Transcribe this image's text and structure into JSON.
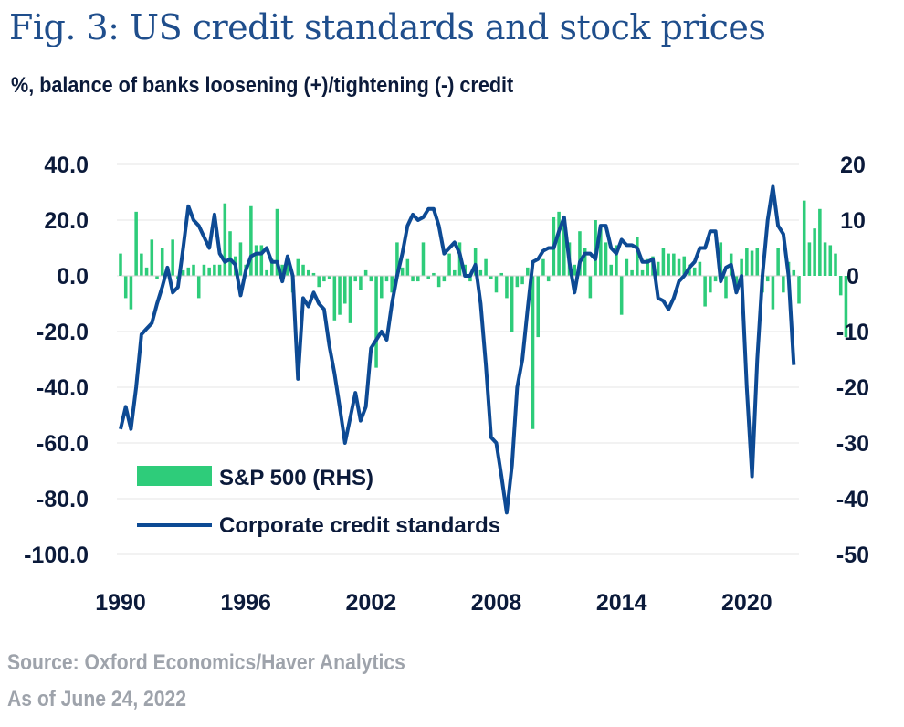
{
  "title": "Fig. 3: US credit standards and stock prices",
  "subtitle": "%, balance of banks loosening (+)/tightening (-) credit",
  "footer": {
    "source": "Source: Oxford Economics/Haver Analytics",
    "as_of": "As of June 24, 2022"
  },
  "colors": {
    "bars": "#2ecc7a",
    "line": "#0d4a94",
    "text": "#0b1a3a",
    "title": "#1f4e8c",
    "grid": "#e6e6e6",
    "footer": "#9ea3ab"
  },
  "chart_data": {
    "type": "bar+line",
    "title": "Fig. 3: US credit standards and stock prices",
    "x_range": [
      1990,
      2022.5
    ],
    "x_ticks": [
      "1990",
      "1996",
      "2002",
      "2008",
      "2014",
      "2020"
    ],
    "y_left": {
      "range": [
        -100,
        40
      ],
      "ticks": [
        "40.0",
        "20.0",
        "0.0",
        "-20.0",
        "-40.0",
        "-60.0",
        "-80.0",
        "-100.0"
      ]
    },
    "y_right": {
      "range": [
        -50,
        20
      ],
      "ticks": [
        "20",
        "10",
        "0",
        "-10",
        "-20",
        "-30",
        "-40",
        "-50"
      ]
    },
    "legend": {
      "position": "bottom-left"
    },
    "series": [
      {
        "name": "S&P 500 (RHS)",
        "type": "bar",
        "axis": "right",
        "start": 1990.0,
        "step": 0.25,
        "values": [
          4,
          -4,
          -6,
          11.5,
          4,
          1.5,
          6.5,
          -0.5,
          5,
          1,
          6.5,
          -0.5,
          1,
          1.5,
          2,
          -4,
          2,
          1.5,
          2,
          2,
          13,
          8,
          3.5,
          6,
          2,
          12.5,
          5.5,
          5.5,
          1,
          3,
          12,
          2,
          3,
          -3,
          3,
          2,
          1,
          0.5,
          -2,
          -1,
          -0.5,
          -8,
          -7,
          -5,
          -8.5,
          -1,
          -2.5,
          1,
          -1,
          -16.5,
          -4,
          -1,
          -3,
          6,
          1.5,
          3,
          -1,
          -1,
          6,
          -0.5,
          0.5,
          -2,
          -1,
          4,
          1,
          6,
          2,
          -1,
          5,
          1,
          3,
          -0.5,
          -3,
          0.5,
          -4,
          -10,
          -2,
          -1.5,
          1.5,
          -27.5,
          -11,
          3,
          -1,
          10.5,
          11.5,
          10,
          6,
          2,
          8,
          5,
          -4,
          10,
          9,
          6,
          2,
          5.5,
          -7,
          3,
          1,
          7,
          1,
          3,
          3.5,
          2.5,
          5,
          4,
          4,
          3,
          3.5,
          2,
          1.5,
          2.5,
          -5.5,
          -3,
          -1,
          6,
          -4,
          4,
          -3,
          3,
          5,
          4.5,
          5,
          -3,
          -1,
          -6,
          5,
          -3,
          2.5,
          1,
          -5,
          13.5,
          6,
          8.5,
          12,
          6,
          5.5,
          4,
          -3.5,
          -11
        ]
      },
      {
        "name": "Corporate credit standards",
        "type": "line",
        "axis": "left",
        "points": [
          [
            1990.0,
            -55
          ],
          [
            1990.25,
            -47
          ],
          [
            1990.5,
            -55
          ],
          [
            1990.75,
            -40
          ],
          [
            1991.0,
            -21
          ],
          [
            1991.25,
            -19
          ],
          [
            1991.5,
            -17
          ],
          [
            1991.75,
            -10
          ],
          [
            1992.0,
            -4
          ],
          [
            1992.25,
            3
          ],
          [
            1992.5,
            -6
          ],
          [
            1992.75,
            -4
          ],
          [
            1993.0,
            10
          ],
          [
            1993.25,
            25
          ],
          [
            1993.5,
            20
          ],
          [
            1993.75,
            18
          ],
          [
            1994.0,
            14
          ],
          [
            1994.25,
            10
          ],
          [
            1994.5,
            22
          ],
          [
            1994.75,
            8
          ],
          [
            1995.0,
            5
          ],
          [
            1995.25,
            6
          ],
          [
            1995.5,
            4
          ],
          [
            1995.75,
            -7
          ],
          [
            1996.0,
            2
          ],
          [
            1996.25,
            7
          ],
          [
            1996.5,
            8
          ],
          [
            1996.75,
            8
          ],
          [
            1997.0,
            10
          ],
          [
            1997.25,
            5
          ],
          [
            1997.5,
            5
          ],
          [
            1997.75,
            -2
          ],
          [
            1998.0,
            7
          ],
          [
            1998.25,
            0
          ],
          [
            1998.5,
            -37
          ],
          [
            1998.75,
            -8
          ],
          [
            1999.0,
            -11
          ],
          [
            1999.25,
            -6
          ],
          [
            1999.5,
            -10
          ],
          [
            1999.75,
            -12
          ],
          [
            2000.0,
            -25
          ],
          [
            2000.25,
            -35
          ],
          [
            2000.5,
            -47
          ],
          [
            2000.75,
            -60
          ],
          [
            2001.0,
            -51
          ],
          [
            2001.25,
            -42
          ],
          [
            2001.5,
            -52
          ],
          [
            2001.75,
            -47
          ],
          [
            2002.0,
            -26
          ],
          [
            2002.25,
            -23
          ],
          [
            2002.5,
            -20
          ],
          [
            2002.75,
            -23
          ],
          [
            2003.0,
            -10
          ],
          [
            2003.25,
            0
          ],
          [
            2003.5,
            8
          ],
          [
            2003.75,
            18
          ],
          [
            2004.0,
            22
          ],
          [
            2004.25,
            20
          ],
          [
            2004.5,
            21
          ],
          [
            2004.75,
            24
          ],
          [
            2005.0,
            24
          ],
          [
            2005.25,
            18
          ],
          [
            2005.5,
            8
          ],
          [
            2005.75,
            10
          ],
          [
            2006.0,
            12
          ],
          [
            2006.25,
            8
          ],
          [
            2006.5,
            0
          ],
          [
            2006.75,
            0
          ],
          [
            2007.0,
            4
          ],
          [
            2007.25,
            -10
          ],
          [
            2007.5,
            -32
          ],
          [
            2007.75,
            -58
          ],
          [
            2008.0,
            -60
          ],
          [
            2008.25,
            -72
          ],
          [
            2008.5,
            -85
          ],
          [
            2008.75,
            -68
          ],
          [
            2009.0,
            -40
          ],
          [
            2009.25,
            -30
          ],
          [
            2009.5,
            -12
          ],
          [
            2009.75,
            5
          ],
          [
            2010.0,
            6
          ],
          [
            2010.25,
            9
          ],
          [
            2010.5,
            10
          ],
          [
            2010.75,
            10
          ],
          [
            2011.0,
            16
          ],
          [
            2011.25,
            21
          ],
          [
            2011.5,
            5
          ],
          [
            2011.75,
            -6
          ],
          [
            2012.0,
            5
          ],
          [
            2012.25,
            8
          ],
          [
            2012.5,
            8
          ],
          [
            2012.75,
            6
          ],
          [
            2013.0,
            18
          ],
          [
            2013.25,
            18
          ],
          [
            2013.5,
            10
          ],
          [
            2013.75,
            8
          ],
          [
            2014.0,
            13
          ],
          [
            2014.25,
            11
          ],
          [
            2014.5,
            11
          ],
          [
            2014.75,
            10
          ],
          [
            2015.0,
            5
          ],
          [
            2015.25,
            5
          ],
          [
            2015.5,
            6
          ],
          [
            2015.75,
            -8
          ],
          [
            2016.0,
            -9
          ],
          [
            2016.25,
            -12
          ],
          [
            2016.5,
            -8
          ],
          [
            2016.75,
            -2
          ],
          [
            2017.0,
            0
          ],
          [
            2017.25,
            3
          ],
          [
            2017.5,
            5
          ],
          [
            2017.75,
            10
          ],
          [
            2018.0,
            10
          ],
          [
            2018.25,
            16
          ],
          [
            2018.5,
            16
          ],
          [
            2018.75,
            -2
          ],
          [
            2019.0,
            3
          ],
          [
            2019.25,
            4
          ],
          [
            2019.5,
            -6
          ],
          [
            2019.75,
            0
          ],
          [
            2020.0,
            -40
          ],
          [
            2020.25,
            -72
          ],
          [
            2020.5,
            -30
          ],
          [
            2020.75,
            0
          ],
          [
            2021.0,
            20
          ],
          [
            2021.25,
            32
          ],
          [
            2021.5,
            18
          ],
          [
            2021.75,
            15
          ],
          [
            2022.0,
            0
          ],
          [
            2022.25,
            -32
          ]
        ]
      }
    ]
  }
}
